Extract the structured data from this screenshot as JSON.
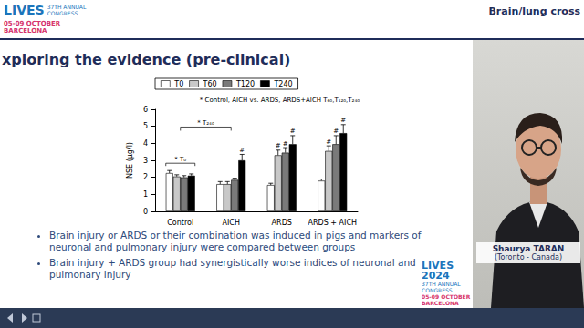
{
  "header": {
    "logo": {
      "name": "LIVES",
      "edition": "37TH ANNUAL CONGRESS",
      "dates": "05-09 OCTOBER",
      "city": "BARCELONA"
    },
    "section": "Brain/lung cross"
  },
  "slide": {
    "title": "xploring the evidence (pre-clinical)",
    "bullets": [
      "Brain injury or ARDS or their combination was induced in pigs and markers of neuronal and pulmonary injury were compared between groups",
      "Brain injury + ARDS group had synergistically worse indices of neuronal and pulmonary injury"
    ]
  },
  "chart_data": {
    "type": "bar",
    "y_label": "NSE (µg/l)",
    "categories": [
      "Control",
      "AICH",
      "ARDS",
      "ARDS + AICH"
    ],
    "series": [
      {
        "name": "T0",
        "color": "#ffffff",
        "values": [
          2.25,
          1.6,
          1.55,
          1.8
        ],
        "errors": [
          0.15,
          0.15,
          0.1,
          0.1
        ],
        "symbols": [
          null,
          null,
          null,
          null
        ]
      },
      {
        "name": "T60",
        "color": "#c8c8c8",
        "values": [
          2.05,
          1.6,
          3.3,
          3.55
        ],
        "errors": [
          0.1,
          0.15,
          0.3,
          0.3
        ],
        "symbols": [
          null,
          null,
          "#",
          "#"
        ]
      },
      {
        "name": "T120",
        "color": "#7a7a7a",
        "values": [
          2.0,
          1.85,
          3.45,
          3.95
        ],
        "errors": [
          0.1,
          0.1,
          0.3,
          0.5
        ],
        "symbols": [
          null,
          null,
          "#",
          "#"
        ]
      },
      {
        "name": "T240",
        "color": "#000000",
        "values": [
          2.1,
          3.0,
          3.95,
          4.6
        ],
        "errors": [
          0.1,
          0.35,
          0.5,
          0.5
        ],
        "symbols": [
          null,
          "#",
          "#",
          "#"
        ]
      }
    ],
    "ylim": [
      0,
      6
    ],
    "yticks": [
      0,
      1,
      2,
      3,
      4,
      5,
      6
    ],
    "grid": false,
    "legend": "top",
    "annotations": {
      "groups": "* Control, AICH vs. ARDS, ARDS+AICH T₆₀,T₁₂₀,T₂₄₀",
      "control": "* T₀",
      "control_vs_aich": "* T₂₄₀"
    }
  },
  "speaker": {
    "name": "Shaurya TARAN",
    "affiliation": "(Toronto - Canada)"
  },
  "footer_logo": {
    "name": "LIVES",
    "year": "2024",
    "edition": "37TH ANNUAL CONGRESS",
    "dates": "05-09 OCTOBER",
    "city": "BARCELONA"
  }
}
